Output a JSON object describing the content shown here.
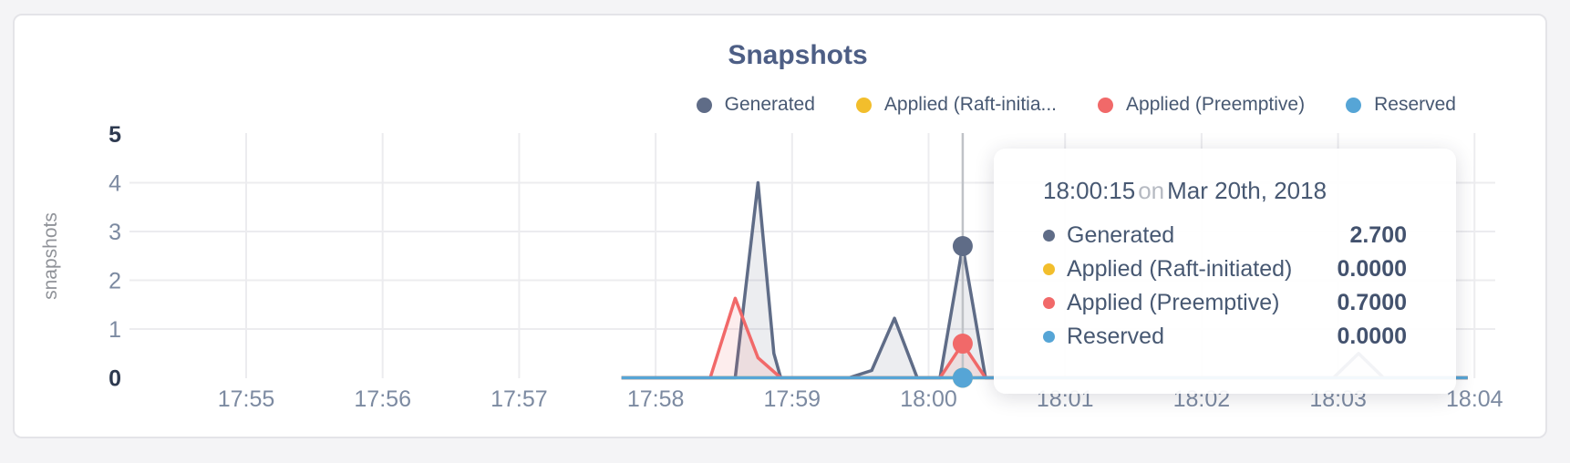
{
  "chart": {
    "title": "Snapshots",
    "ylabel": "snapshots"
  },
  "legend": [
    {
      "label": "Generated",
      "color": "#5F6C87"
    },
    {
      "label": "Applied (Raft-initia...",
      "color": "#F2BE2C"
    },
    {
      "label": "Applied (Preemptive)",
      "color": "#F16969"
    },
    {
      "label": "Reserved",
      "color": "#56A5D6"
    }
  ],
  "chart_data": {
    "type": "area",
    "title": "Snapshots",
    "xlabel": "",
    "ylabel": "snapshots",
    "ylim": [
      0,
      5
    ],
    "grid": true,
    "legend_position": "top-right",
    "x_ticks": [
      "17:55",
      "17:56",
      "17:57",
      "17:58",
      "17:59",
      "18:00",
      "18:01",
      "18:02",
      "18:03",
      "18:04"
    ],
    "y_ticks": [
      {
        "value": 0,
        "emphasis": true
      },
      {
        "value": 1,
        "emphasis": false
      },
      {
        "value": 2,
        "emphasis": false
      },
      {
        "value": 3,
        "emphasis": false
      },
      {
        "value": 4,
        "emphasis": false
      },
      {
        "value": 5,
        "emphasis": true
      }
    ],
    "series": [
      {
        "name": "Generated",
        "color": "#5F6C87",
        "points": [
          [
            "17:57:45",
            0
          ],
          [
            "17:58:35",
            0
          ],
          [
            "17:58:45",
            4.0
          ],
          [
            "17:58:52",
            0.5
          ],
          [
            "17:58:55",
            0
          ],
          [
            "17:59:25",
            0
          ],
          [
            "17:59:35",
            0.15
          ],
          [
            "17:59:45",
            1.22
          ],
          [
            "17:59:55",
            0
          ],
          [
            "18:00:05",
            0
          ],
          [
            "18:00:15",
            2.7
          ],
          [
            "18:00:25",
            0
          ],
          [
            "18:02:58",
            0
          ],
          [
            "18:03:09",
            0.5
          ],
          [
            "18:03:20",
            0
          ],
          [
            "18:03:57",
            0
          ]
        ]
      },
      {
        "name": "Applied (Raft-initiated)",
        "color": "#F2BE2C",
        "points": [
          [
            "17:57:45",
            0
          ],
          [
            "18:03:57",
            0
          ]
        ]
      },
      {
        "name": "Applied (Preemptive)",
        "color": "#F16969",
        "points": [
          [
            "17:57:45",
            0
          ],
          [
            "17:58:24",
            0
          ],
          [
            "17:58:35",
            1.63
          ],
          [
            "17:58:45",
            0.41
          ],
          [
            "17:58:55",
            0
          ],
          [
            "18:00:05",
            0
          ],
          [
            "18:00:15",
            0.7
          ],
          [
            "18:00:25",
            0
          ],
          [
            "18:03:57",
            0
          ]
        ]
      },
      {
        "name": "Reserved",
        "color": "#56A5D6",
        "points": [
          [
            "17:57:45",
            0
          ],
          [
            "18:03:57",
            0
          ]
        ]
      }
    ],
    "hover": {
      "time": "18:00:15",
      "values": [
        2.7,
        0.0,
        0.7,
        0.0
      ]
    }
  },
  "tooltip": {
    "time": "18:00:15",
    "conjunction": "on",
    "date": "Mar 20th, 2018",
    "rows": [
      {
        "name": "Generated",
        "color": "#5F6C87",
        "value": "2.700"
      },
      {
        "name": "Applied (Raft-initiated)",
        "color": "#F2BE2C",
        "value": "0.0000"
      },
      {
        "name": "Applied (Preemptive)",
        "color": "#F16969",
        "value": "0.7000"
      },
      {
        "name": "Reserved",
        "color": "#56A5D6",
        "value": "0.0000"
      }
    ]
  },
  "colors": {
    "grid": "#ececef",
    "hover_line": "#bfc2c7",
    "tick": "#7c8aa1",
    "tick_strong": "#2e3a50"
  }
}
